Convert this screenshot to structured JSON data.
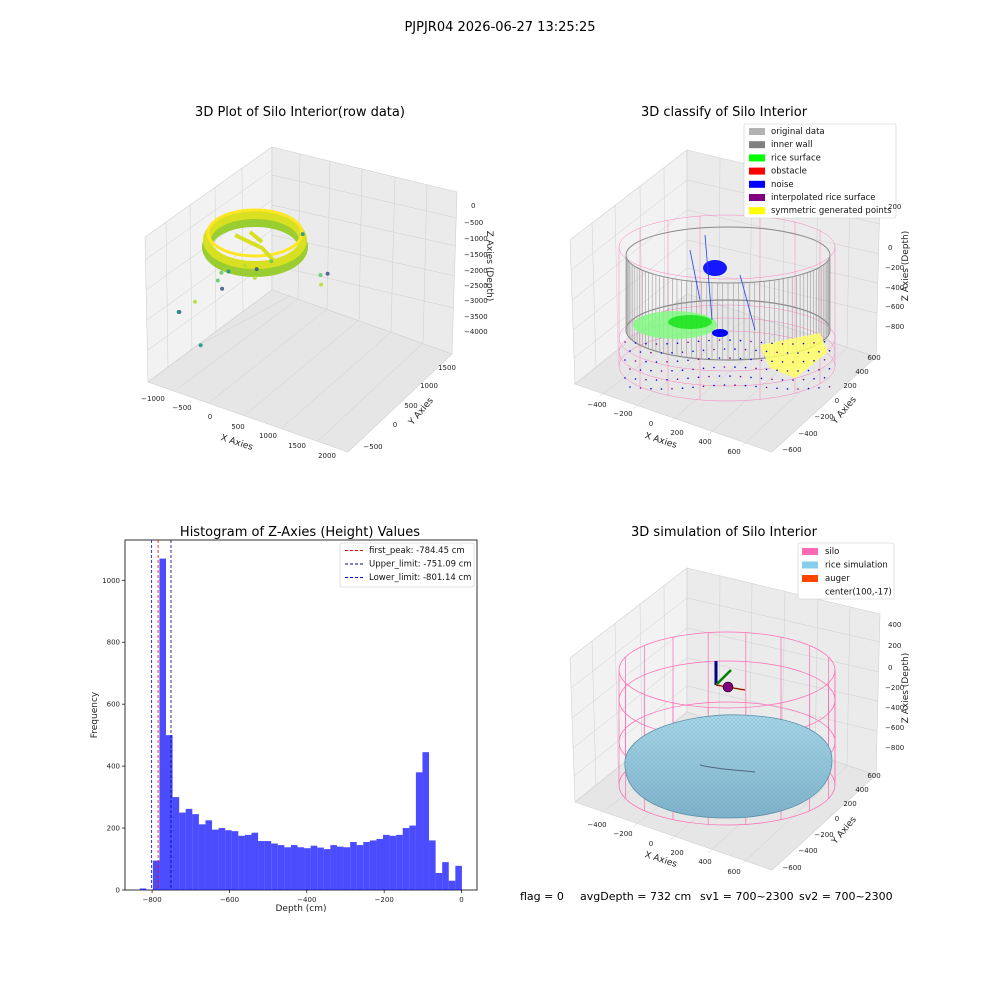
{
  "suptitle": "PJPJR04 2026-06-27 13:25:25",
  "status_line": {
    "flag": "flag = 0",
    "avg_depth": "avgDepth = 732 cm",
    "sv1": "sv1 = 700~2300",
    "sv2": "sv2 = 700~2300"
  },
  "chart_data": [
    {
      "type": "scatter",
      "title": "3D Plot of Silo Interior(row data)",
      "xlabel": "X Axies",
      "ylabel": "Y Axies",
      "zlabel": "Z Axies (Depth)",
      "x_ticks": [
        "−1000",
        "−500",
        "0",
        "500",
        "1000",
        "1500",
        "2000"
      ],
      "y_ticks": [
        "−500",
        "0",
        "500",
        "1000",
        "1500"
      ],
      "z_ticks": [
        "0",
        "−500",
        "−1000",
        "−1500",
        "−2000",
        "−2500",
        "−3000",
        "−3500",
        "−4000"
      ],
      "xlim": [
        -1100,
        2100
      ],
      "ylim": [
        -700,
        1700
      ],
      "zlim": [
        -4200,
        200
      ],
      "colormap": "viridis",
      "grid": true,
      "points": [
        {
          "x": 1800,
          "y": 300,
          "z": -1500
        },
        {
          "x": 1100,
          "y": 600,
          "z": -1100
        },
        {
          "x": 900,
          "y": 200,
          "z": -1500
        },
        {
          "x": 700,
          "y": 100,
          "z": -2000
        },
        {
          "x": 600,
          "y": 250,
          "z": -2000
        },
        {
          "x": 500,
          "y": -200,
          "z": -1500
        },
        {
          "x": 400,
          "y": -300,
          "z": -1700
        },
        {
          "x": 350,
          "y": 300,
          "z": -2100
        },
        {
          "x": 300,
          "y": -100,
          "z": -2300
        },
        {
          "x": 100,
          "y": -300,
          "z": -3900
        },
        {
          "x": 200,
          "y": 0,
          "z": -2000
        },
        {
          "x": 0,
          "y": -300,
          "z": -2600
        },
        {
          "x": -100,
          "y": -500,
          "z": -2700
        },
        {
          "x": -200,
          "y": -400,
          "z": -2900
        },
        {
          "x": 1500,
          "y": 500,
          "z": -2000
        },
        {
          "x": 1600,
          "y": 400,
          "z": -2100
        }
      ]
    },
    {
      "type": "scatter",
      "title": "3D classify of Silo Interior",
      "xlabel": "X Axies",
      "ylabel": "Y Axies",
      "zlabel": "Z Axies (Depth)",
      "x_ticks": [
        "−400",
        "−200",
        "0",
        "200",
        "400",
        "600"
      ],
      "y_ticks": [
        "−600",
        "−400",
        "−200",
        "0",
        "200",
        "400",
        "600"
      ],
      "z_ticks": [
        "200",
        "0",
        "−200",
        "−400",
        "−600",
        "−800"
      ],
      "grid": true,
      "legend_position": "top-right",
      "legend": [
        {
          "label": "original data",
          "color": "#b3b3b3"
        },
        {
          "label": "inner wall",
          "color": "#808080"
        },
        {
          "label": "rice surface",
          "color": "#00ff00"
        },
        {
          "label": "obstacle",
          "color": "#ff0000"
        },
        {
          "label": "noise",
          "color": "#0000ff"
        },
        {
          "label": "interpolated rice surface",
          "color": "#800080"
        },
        {
          "label": "symmetric generated points",
          "color": "#ffff00"
        }
      ],
      "overlay_color": "#ff69b4"
    },
    {
      "type": "bar",
      "title": "Histogram of Z-Axies (Height) Values",
      "xlabel": "Depth (cm)",
      "ylabel": "Frequency",
      "xlim": [
        -870,
        40
      ],
      "ylim": [
        0,
        1130
      ],
      "x_ticks": [
        -800,
        -600,
        -400,
        -200,
        0
      ],
      "y_ticks": [
        0,
        200,
        400,
        600,
        800,
        1000
      ],
      "bar_color": "#0000ff",
      "bins": [
        {
          "start": -832,
          "end": -815,
          "count": 5
        },
        {
          "start": -815,
          "end": -798,
          "count": 0
        },
        {
          "start": -798,
          "end": -781,
          "count": 95
        },
        {
          "start": -781,
          "end": -764,
          "count": 1070
        },
        {
          "start": -764,
          "end": -747,
          "count": 500
        },
        {
          "start": -747,
          "end": -730,
          "count": 300
        },
        {
          "start": -730,
          "end": -713,
          "count": 250
        },
        {
          "start": -713,
          "end": -696,
          "count": 262
        },
        {
          "start": -696,
          "end": -679,
          "count": 245
        },
        {
          "start": -679,
          "end": -662,
          "count": 212
        },
        {
          "start": -662,
          "end": -645,
          "count": 225
        },
        {
          "start": -645,
          "end": -628,
          "count": 195
        },
        {
          "start": -628,
          "end": -611,
          "count": 200
        },
        {
          "start": -611,
          "end": -594,
          "count": 193
        },
        {
          "start": -594,
          "end": -577,
          "count": 190
        },
        {
          "start": -577,
          "end": -560,
          "count": 175
        },
        {
          "start": -560,
          "end": -543,
          "count": 178
        },
        {
          "start": -543,
          "end": -526,
          "count": 185
        },
        {
          "start": -526,
          "end": -509,
          "count": 158
        },
        {
          "start": -509,
          "end": -492,
          "count": 158
        },
        {
          "start": -492,
          "end": -475,
          "count": 150
        },
        {
          "start": -475,
          "end": -458,
          "count": 145
        },
        {
          "start": -458,
          "end": -441,
          "count": 138
        },
        {
          "start": -441,
          "end": -424,
          "count": 145
        },
        {
          "start": -424,
          "end": -407,
          "count": 138
        },
        {
          "start": -407,
          "end": -390,
          "count": 135
        },
        {
          "start": -390,
          "end": -373,
          "count": 143
        },
        {
          "start": -373,
          "end": -356,
          "count": 137
        },
        {
          "start": -356,
          "end": -339,
          "count": 132
        },
        {
          "start": -339,
          "end": -322,
          "count": 145
        },
        {
          "start": -322,
          "end": -305,
          "count": 140
        },
        {
          "start": -305,
          "end": -288,
          "count": 138
        },
        {
          "start": -288,
          "end": -271,
          "count": 155
        },
        {
          "start": -271,
          "end": -254,
          "count": 145
        },
        {
          "start": -254,
          "end": -237,
          "count": 155
        },
        {
          "start": -237,
          "end": -220,
          "count": 160
        },
        {
          "start": -220,
          "end": -203,
          "count": 165
        },
        {
          "start": -203,
          "end": -186,
          "count": 178
        },
        {
          "start": -186,
          "end": -169,
          "count": 175
        },
        {
          "start": -169,
          "end": -152,
          "count": 178
        },
        {
          "start": -152,
          "end": -135,
          "count": 200
        },
        {
          "start": -135,
          "end": -118,
          "count": 208
        },
        {
          "start": -118,
          "end": -101,
          "count": 380
        },
        {
          "start": -101,
          "end": -84,
          "count": 445
        },
        {
          "start": -84,
          "end": -67,
          "count": 160
        },
        {
          "start": -67,
          "end": -50,
          "count": 55
        },
        {
          "start": -50,
          "end": -33,
          "count": 90
        },
        {
          "start": -33,
          "end": -16,
          "count": 30
        },
        {
          "start": -16,
          "end": 1,
          "count": 78
        }
      ],
      "vlines": [
        {
          "value": -784.45,
          "label": "first_peak: -784.45 cm",
          "color": "#ff0000"
        },
        {
          "value": -751.09,
          "label": "Upper_limit: -751.09 cm",
          "color": "#00008b"
        },
        {
          "value": -801.14,
          "label": "Lower_limit: -801.14 cm",
          "color": "#0000ff"
        }
      ],
      "legend_position": "top-right"
    },
    {
      "type": "surface",
      "title": "3D simulation of Silo Interior",
      "xlabel": "X Axies",
      "ylabel": "Y Axies",
      "zlabel": "Z Axies (Depth)",
      "x_ticks": [
        "−400",
        "−200",
        "0",
        "200",
        "400",
        "600"
      ],
      "y_ticks": [
        "−600",
        "−400",
        "−200",
        "0",
        "200",
        "400",
        "600"
      ],
      "z_ticks": [
        "400",
        "200",
        "0",
        "−200",
        "−400",
        "−600",
        "−800"
      ],
      "grid": true,
      "legend_position": "top-right",
      "legend": [
        {
          "label": "silo",
          "color": "#ff69b4"
        },
        {
          "label": "rice simulation",
          "color": "#87ceeb"
        },
        {
          "label": "auger",
          "color": "#ff4500"
        },
        {
          "label": "center(100,-17)",
          "color": "#800080"
        }
      ]
    }
  ]
}
